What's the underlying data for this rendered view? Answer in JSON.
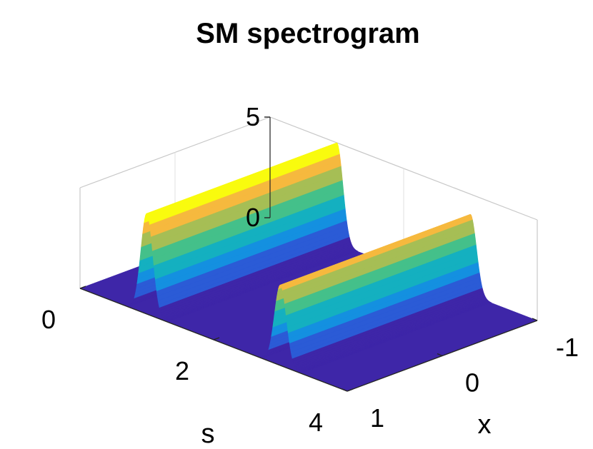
{
  "chart_data": {
    "type": "surface",
    "title": "SM spectrogram",
    "xlabel": "x",
    "slabel": "s",
    "zlabel": "",
    "x_ticks": [
      "-1",
      "0",
      "1"
    ],
    "s_ticks": [
      "0",
      "2",
      "4"
    ],
    "z_ticks": [
      "0",
      "5"
    ],
    "xlim": [
      -1,
      1
    ],
    "slim": [
      0,
      4
    ],
    "zlim": [
      0,
      5
    ],
    "grid": true,
    "colormap": [
      "#3e26a8",
      "#2b5bd6",
      "#1490e0",
      "#14b0c0",
      "#44c08a",
      "#a6be55",
      "#f6b93e",
      "#f9fb0e"
    ],
    "ridges": [
      {
        "center_s": 1.0,
        "height": 5.0
      },
      {
        "center_s": 3.0,
        "height": 4.0
      }
    ]
  }
}
